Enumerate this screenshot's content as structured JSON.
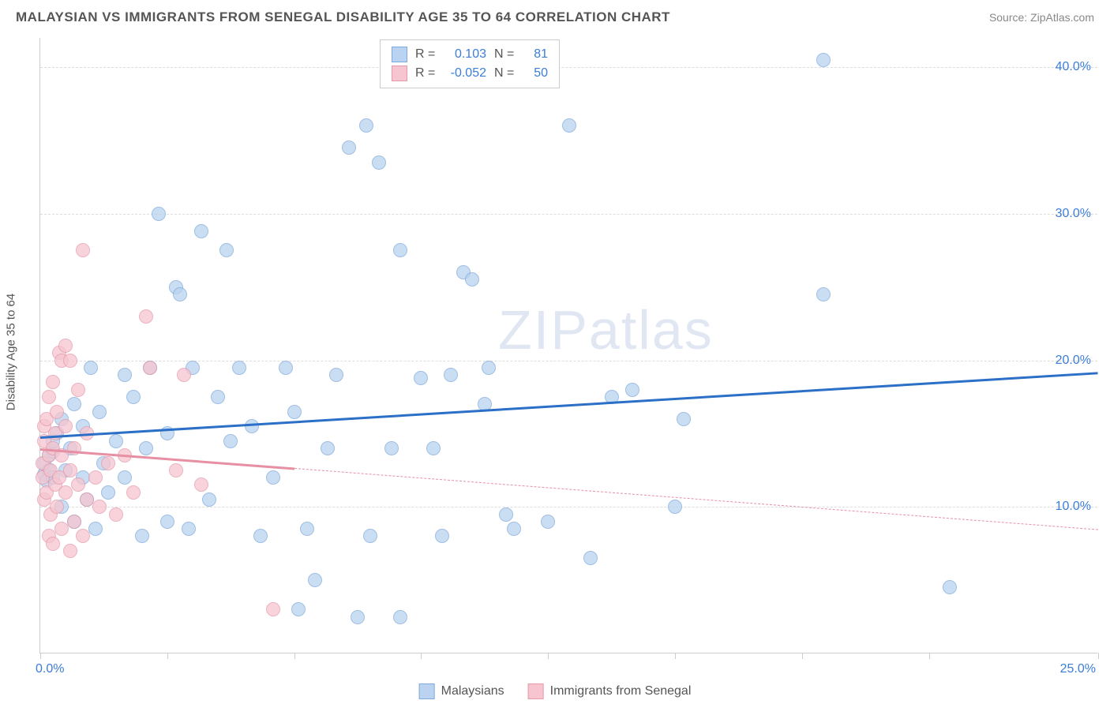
{
  "header": {
    "title": "MALAYSIAN VS IMMIGRANTS FROM SENEGAL DISABILITY AGE 35 TO 64 CORRELATION CHART",
    "source": "Source: ZipAtlas.com"
  },
  "chart": {
    "type": "scatter",
    "ylabel": "Disability Age 35 to 64",
    "watermark": "ZIPatlas",
    "background_color": "#ffffff",
    "grid_color": "#dddddd",
    "axis_color": "#cccccc",
    "tick_label_color": "#3b7dd8",
    "xlim": [
      0,
      25
    ],
    "ylim": [
      0,
      42
    ],
    "xtick_positions": [
      0,
      3,
      6,
      9,
      12,
      15,
      18,
      21,
      25
    ],
    "xtick_labels": {
      "0": "0.0%",
      "25": "25.0%"
    },
    "ytick_positions": [
      10,
      20,
      30,
      40
    ],
    "ytick_labels": {
      "10": "10.0%",
      "20": "20.0%",
      "30": "30.0%",
      "40": "40.0%"
    },
    "point_radius": 9,
    "series": [
      {
        "name": "Malaysians",
        "fill_color": "#b9d3f0",
        "stroke_color": "#7fa9db",
        "fill_opacity": 0.75,
        "R": "0.103",
        "N": "81",
        "trend": {
          "y_start": 14.8,
          "y_end": 19.2,
          "color": "#2b6fc7",
          "dashed": false
        },
        "points": [
          [
            0.1,
            12.2
          ],
          [
            0.1,
            13.0
          ],
          [
            0.2,
            12.5
          ],
          [
            0.2,
            13.5
          ],
          [
            0.15,
            11.8
          ],
          [
            0.3,
            12.0
          ],
          [
            0.3,
            13.8
          ],
          [
            0.4,
            15.0
          ],
          [
            0.5,
            10.0
          ],
          [
            0.5,
            16.0
          ],
          [
            0.6,
            12.5
          ],
          [
            0.7,
            14.0
          ],
          [
            0.8,
            17.0
          ],
          [
            0.8,
            9.0
          ],
          [
            1.0,
            15.5
          ],
          [
            1.0,
            12.0
          ],
          [
            1.2,
            19.5
          ],
          [
            1.3,
            8.5
          ],
          [
            1.4,
            16.5
          ],
          [
            1.5,
            13.0
          ],
          [
            1.6,
            11.0
          ],
          [
            1.8,
            14.5
          ],
          [
            2.0,
            19.0
          ],
          [
            2.0,
            12.0
          ],
          [
            2.2,
            17.5
          ],
          [
            2.4,
            8.0
          ],
          [
            2.5,
            14.0
          ],
          [
            2.6,
            19.5
          ],
          [
            2.8,
            30.0
          ],
          [
            3.0,
            9.0
          ],
          [
            3.0,
            15.0
          ],
          [
            3.2,
            25.0
          ],
          [
            3.3,
            24.5
          ],
          [
            3.5,
            8.5
          ],
          [
            3.6,
            19.5
          ],
          [
            3.8,
            28.8
          ],
          [
            4.0,
            10.5
          ],
          [
            4.2,
            17.5
          ],
          [
            4.4,
            27.5
          ],
          [
            4.5,
            14.5
          ],
          [
            4.7,
            19.5
          ],
          [
            5.0,
            15.5
          ],
          [
            5.2,
            8.0
          ],
          [
            5.5,
            12.0
          ],
          [
            5.8,
            19.5
          ],
          [
            6.0,
            16.5
          ],
          [
            6.1,
            3.0
          ],
          [
            6.3,
            8.5
          ],
          [
            6.5,
            5.0
          ],
          [
            6.8,
            14.0
          ],
          [
            7.0,
            19.0
          ],
          [
            7.3,
            34.5
          ],
          [
            7.5,
            2.5
          ],
          [
            7.7,
            36.0
          ],
          [
            7.8,
            8.0
          ],
          [
            8.0,
            33.5
          ],
          [
            8.3,
            14.0
          ],
          [
            8.5,
            27.5
          ],
          [
            8.5,
            2.5
          ],
          [
            9.0,
            18.8
          ],
          [
            9.3,
            14.0
          ],
          [
            9.5,
            8.0
          ],
          [
            9.7,
            19.0
          ],
          [
            10.0,
            26.0
          ],
          [
            10.2,
            25.5
          ],
          [
            10.5,
            17.0
          ],
          [
            10.6,
            19.5
          ],
          [
            11.0,
            9.5
          ],
          [
            11.2,
            8.5
          ],
          [
            12.0,
            9.0
          ],
          [
            12.5,
            36.0
          ],
          [
            13.0,
            6.5
          ],
          [
            13.5,
            17.5
          ],
          [
            14.0,
            18.0
          ],
          [
            15.0,
            10.0
          ],
          [
            15.2,
            16.0
          ],
          [
            18.5,
            40.5
          ],
          [
            18.5,
            24.5
          ],
          [
            21.5,
            4.5
          ],
          [
            0.3,
            14.5
          ],
          [
            1.1,
            10.5
          ]
        ]
      },
      {
        "name": "Immigrants from Senegal",
        "fill_color": "#f6c5cf",
        "stroke_color": "#e59aab",
        "fill_opacity": 0.75,
        "R": "-0.052",
        "N": "50",
        "trend": {
          "y_start": 14.0,
          "y_end": 8.5,
          "color": "#e78fa3",
          "dashed": true,
          "solid_until": 6.0
        },
        "points": [
          [
            0.05,
            12.0
          ],
          [
            0.05,
            13.0
          ],
          [
            0.1,
            10.5
          ],
          [
            0.1,
            14.5
          ],
          [
            0.1,
            15.5
          ],
          [
            0.15,
            11.0
          ],
          [
            0.15,
            16.0
          ],
          [
            0.2,
            8.0
          ],
          [
            0.2,
            13.5
          ],
          [
            0.2,
            17.5
          ],
          [
            0.25,
            9.5
          ],
          [
            0.25,
            12.5
          ],
          [
            0.3,
            7.5
          ],
          [
            0.3,
            14.0
          ],
          [
            0.3,
            18.5
          ],
          [
            0.35,
            11.5
          ],
          [
            0.35,
            15.0
          ],
          [
            0.4,
            10.0
          ],
          [
            0.4,
            16.5
          ],
          [
            0.45,
            12.0
          ],
          [
            0.45,
            20.5
          ],
          [
            0.5,
            8.5
          ],
          [
            0.5,
            13.5
          ],
          [
            0.5,
            20.0
          ],
          [
            0.6,
            11.0
          ],
          [
            0.6,
            15.5
          ],
          [
            0.6,
            21.0
          ],
          [
            0.7,
            7.0
          ],
          [
            0.7,
            12.5
          ],
          [
            0.7,
            20.0
          ],
          [
            0.8,
            9.0
          ],
          [
            0.8,
            14.0
          ],
          [
            0.9,
            11.5
          ],
          [
            0.9,
            18.0
          ],
          [
            1.0,
            8.0
          ],
          [
            1.0,
            27.5
          ],
          [
            1.1,
            10.5
          ],
          [
            1.1,
            15.0
          ],
          [
            1.3,
            12.0
          ],
          [
            1.4,
            10.0
          ],
          [
            1.6,
            13.0
          ],
          [
            1.8,
            9.5
          ],
          [
            2.0,
            13.5
          ],
          [
            2.2,
            11.0
          ],
          [
            2.5,
            23.0
          ],
          [
            2.6,
            19.5
          ],
          [
            3.2,
            12.5
          ],
          [
            3.4,
            19.0
          ],
          [
            3.8,
            11.5
          ],
          [
            5.5,
            3.0
          ]
        ]
      }
    ],
    "legend_labels": {
      "R": "R =",
      "N": "N ="
    }
  }
}
